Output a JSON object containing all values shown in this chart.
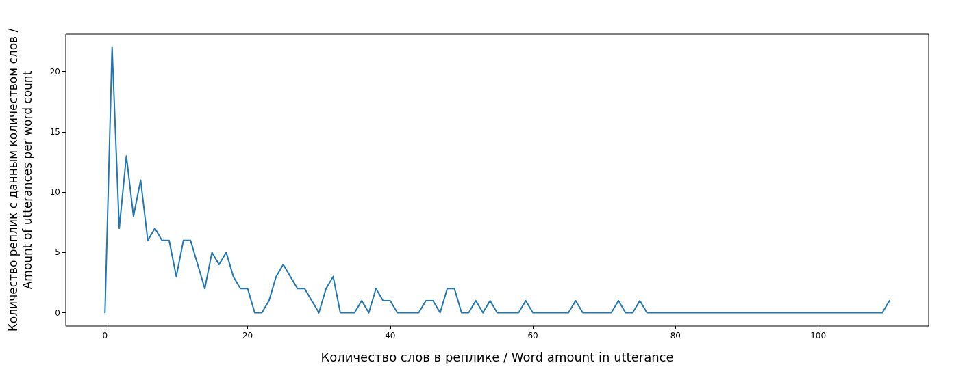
{
  "chart_data": {
    "type": "line",
    "xlabel": "Количество слов в реплике / Word amount in utterance",
    "ylabel": "Количество реплик с данным количеством слов /\nAmount of utterances per word count",
    "x": [
      0,
      1,
      2,
      3,
      4,
      5,
      6,
      7,
      8,
      9,
      10,
      11,
      12,
      13,
      14,
      15,
      16,
      17,
      18,
      19,
      20,
      21,
      22,
      23,
      24,
      25,
      26,
      27,
      28,
      29,
      30,
      31,
      32,
      33,
      34,
      35,
      36,
      37,
      38,
      39,
      40,
      41,
      42,
      43,
      44,
      45,
      46,
      47,
      48,
      49,
      50,
      51,
      52,
      53,
      54,
      55,
      56,
      57,
      58,
      59,
      60,
      61,
      62,
      63,
      64,
      65,
      66,
      67,
      68,
      69,
      70,
      71,
      72,
      73,
      74,
      75,
      76,
      77,
      78,
      79,
      80,
      81,
      82,
      83,
      84,
      85,
      86,
      87,
      88,
      89,
      90,
      91,
      92,
      93,
      94,
      95,
      96,
      97,
      98,
      99,
      100,
      101,
      102,
      103,
      104,
      105,
      106,
      107,
      108,
      109,
      110
    ],
    "series": [
      {
        "color": "#1f77b4",
        "values": [
          0,
          22,
          7,
          13,
          8,
          11,
          6,
          7,
          6,
          6,
          3,
          6,
          6,
          4,
          2,
          5,
          4,
          5,
          3,
          2,
          2,
          0,
          0,
          1,
          3,
          4,
          3,
          2,
          2,
          1,
          0,
          2,
          3,
          0,
          0,
          0,
          1,
          0,
          2,
          1,
          1,
          0,
          0,
          0,
          0,
          1,
          1,
          0,
          2,
          2,
          0,
          0,
          1,
          0,
          1,
          0,
          0,
          0,
          0,
          1,
          0,
          0,
          0,
          0,
          0,
          0,
          1,
          0,
          0,
          0,
          0,
          0,
          1,
          0,
          0,
          1,
          0,
          0,
          0,
          0,
          0,
          0,
          0,
          0,
          0,
          0,
          0,
          0,
          0,
          0,
          0,
          0,
          0,
          0,
          0,
          0,
          0,
          0,
          0,
          0,
          0,
          0,
          0,
          0,
          0,
          0,
          0,
          0,
          0,
          0,
          1
        ]
      }
    ],
    "xlim": [
      -5.5,
      115.5
    ],
    "ylim": [
      -1.1,
      23.1
    ],
    "xticks": [
      0,
      20,
      40,
      60,
      80,
      100
    ],
    "yticks": [
      0,
      5,
      10,
      15,
      20
    ],
    "grid": false,
    "marker": "none",
    "line_style": "solid"
  }
}
